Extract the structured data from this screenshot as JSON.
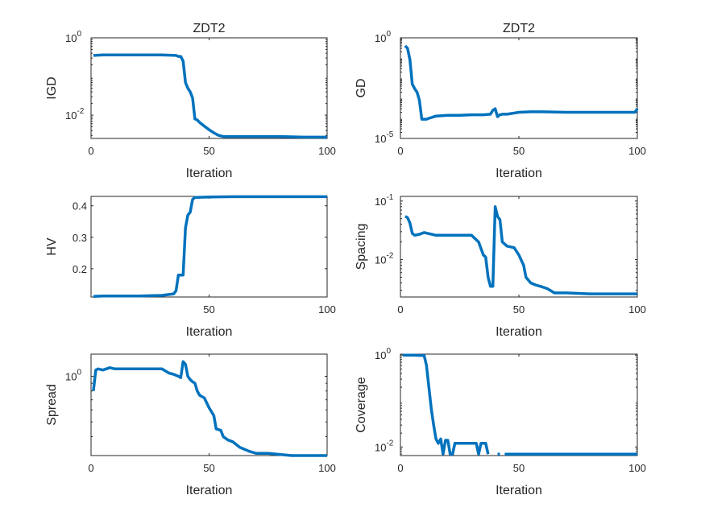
{
  "figure": {
    "series_color": "#0072BD",
    "axis_color": "#262626"
  },
  "chart_data": [
    {
      "id": "igd",
      "type": "line",
      "title": "ZDT2",
      "xlabel": "Iteration",
      "ylabel": "IGD",
      "xlim": [
        0,
        100
      ],
      "ylim": [
        0.0025,
        1
      ],
      "yscale": "log",
      "xticks": [
        0,
        50,
        100
      ],
      "xtick_labels": [
        "0",
        "50",
        "100"
      ],
      "yticks": [
        {
          "value": 1,
          "base": "10",
          "exp": "0"
        },
        {
          "value": 0.01,
          "base": "10",
          "exp": "-2"
        }
      ],
      "grid": false,
      "x": [
        1,
        5,
        10,
        20,
        30,
        36,
        37,
        38,
        39,
        40,
        41,
        42,
        43,
        44,
        45,
        46,
        48,
        50,
        52,
        54,
        56,
        58,
        60,
        65,
        70,
        80,
        90,
        100
      ],
      "y": [
        0.35,
        0.36,
        0.36,
        0.36,
        0.36,
        0.35,
        0.33,
        0.33,
        0.25,
        0.07,
        0.05,
        0.04,
        0.028,
        0.008,
        0.0075,
        0.0065,
        0.0052,
        0.0042,
        0.0035,
        0.003,
        0.0028,
        0.0028,
        0.0028,
        0.0028,
        0.0028,
        0.0028,
        0.0027,
        0.0027
      ]
    },
    {
      "id": "gd",
      "type": "line",
      "title": "ZDT2",
      "xlabel": "Iteration",
      "ylabel": "GD",
      "xlim": [
        0,
        100
      ],
      "ylim": [
        1e-05,
        1
      ],
      "yscale": "log",
      "xticks": [
        0,
        50,
        100
      ],
      "xtick_labels": [
        "0",
        "50",
        "100"
      ],
      "yticks": [
        {
          "value": 1,
          "base": "10",
          "exp": "0"
        },
        {
          "value": 1e-05,
          "base": "10",
          "exp": "-5"
        }
      ],
      "grid": false,
      "x": [
        2,
        3,
        4,
        5,
        6,
        7,
        8,
        9,
        10,
        11,
        12,
        15,
        20,
        25,
        30,
        35,
        38,
        39,
        40,
        41,
        42,
        43,
        45,
        50,
        55,
        60,
        70,
        80,
        90,
        99,
        100
      ],
      "y": [
        0.4,
        0.3,
        0.08,
        0.005,
        0.003,
        0.002,
        0.0008,
        9e-05,
        9e-05,
        9e-05,
        0.0001,
        0.00013,
        0.00014,
        0.00014,
        0.00015,
        0.00015,
        0.00016,
        0.00025,
        0.0003,
        0.00012,
        0.00015,
        0.00016,
        0.00016,
        0.0002,
        0.00021,
        0.00021,
        0.0002,
        0.0002,
        0.0002,
        0.0002,
        0.0003
      ]
    },
    {
      "id": "hv",
      "type": "line",
      "title": "",
      "xlabel": "Iteration",
      "ylabel": "HV",
      "xlim": [
        0,
        100
      ],
      "ylim": [
        0.11,
        0.43
      ],
      "yscale": "linear",
      "xticks": [
        50,
        100
      ],
      "xtick_labels": [
        "50",
        "100"
      ],
      "yticks": [
        {
          "value": 0.2,
          "label": "0.2"
        },
        {
          "value": 0.3,
          "label": "0.3"
        },
        {
          "value": 0.4,
          "label": "0.4"
        }
      ],
      "grid": false,
      "x": [
        1,
        5,
        10,
        20,
        30,
        35,
        36,
        37,
        38,
        39,
        40,
        41,
        42,
        43,
        44,
        45,
        50,
        60,
        70,
        80,
        90,
        100
      ],
      "y": [
        0.112,
        0.113,
        0.113,
        0.113,
        0.115,
        0.12,
        0.13,
        0.18,
        0.18,
        0.18,
        0.33,
        0.37,
        0.38,
        0.42,
        0.427,
        0.427,
        0.428,
        0.429,
        0.429,
        0.429,
        0.429,
        0.429
      ]
    },
    {
      "id": "spacing",
      "type": "line",
      "title": "",
      "xlabel": "Iteration",
      "ylabel": "Spacing",
      "xlim": [
        0,
        100
      ],
      "ylim": [
        0.0023,
        0.12
      ],
      "yscale": "log",
      "xticks": [
        0,
        50,
        100
      ],
      "xtick_labels": [
        "0",
        "50",
        "100"
      ],
      "yticks": [
        {
          "value": 0.1,
          "base": "10",
          "exp": "-1"
        },
        {
          "value": 0.01,
          "base": "10",
          "exp": "-2"
        }
      ],
      "grid": false,
      "x": [
        2,
        3,
        4,
        5,
        6,
        8,
        10,
        15,
        20,
        25,
        30,
        33,
        35,
        36,
        37,
        38,
        39,
        40,
        41,
        42,
        43,
        45,
        48,
        50,
        52,
        53,
        55,
        57,
        60,
        62,
        65,
        70,
        80,
        90,
        100
      ],
      "y": [
        0.055,
        0.052,
        0.042,
        0.028,
        0.026,
        0.027,
        0.029,
        0.026,
        0.026,
        0.026,
        0.026,
        0.02,
        0.012,
        0.011,
        0.005,
        0.0035,
        0.0035,
        0.08,
        0.055,
        0.048,
        0.02,
        0.017,
        0.016,
        0.012,
        0.008,
        0.005,
        0.004,
        0.0037,
        0.0034,
        0.0032,
        0.0027,
        0.0027,
        0.0026,
        0.0026,
        0.0026
      ]
    },
    {
      "id": "spread",
      "type": "line",
      "title": "",
      "xlabel": "Iteration",
      "ylabel": "Spread",
      "xlim": [
        0,
        100
      ],
      "ylim": [
        0.3,
        1.4
      ],
      "yscale": "log",
      "xticks": [
        0,
        50,
        100
      ],
      "xtick_labels": [
        "0",
        "50",
        "100"
      ],
      "yticks": [
        {
          "value": 1,
          "base": "10",
          "exp": "0"
        }
      ],
      "grid": false,
      "x": [
        1,
        2,
        3,
        5,
        8,
        10,
        15,
        20,
        25,
        30,
        33,
        35,
        37,
        38,
        39,
        40,
        41,
        42,
        43,
        44,
        45,
        46,
        48,
        50,
        52,
        53,
        55,
        56,
        58,
        60,
        63,
        65,
        67,
        70,
        75,
        80,
        85,
        90,
        95,
        100
      ],
      "y": [
        0.8,
        1.1,
        1.12,
        1.1,
        1.14,
        1.12,
        1.12,
        1.12,
        1.12,
        1.12,
        1.05,
        1.03,
        1.0,
        0.98,
        1.25,
        1.2,
        1.0,
        0.95,
        0.92,
        0.9,
        0.8,
        0.75,
        0.72,
        0.62,
        0.55,
        0.45,
        0.44,
        0.4,
        0.38,
        0.37,
        0.34,
        0.33,
        0.32,
        0.31,
        0.31,
        0.305,
        0.3,
        0.3,
        0.3,
        0.3
      ]
    },
    {
      "id": "coverage",
      "type": "line",
      "title": "",
      "xlabel": "Iteration",
      "ylabel": "Coverage",
      "xlim": [
        0,
        100
      ],
      "ylim": [
        0.0065,
        1.05
      ],
      "yscale": "log",
      "xticks": [
        0,
        50,
        100
      ],
      "xtick_labels": [
        "0",
        "50",
        "100"
      ],
      "yticks": [
        {
          "value": 1,
          "base": "10",
          "exp": "0"
        },
        {
          "value": 0.01,
          "base": "10",
          "exp": "-2"
        }
      ],
      "grid": false,
      "segments": [
        {
          "x": [
            1,
            5,
            10,
            11,
            12,
            13,
            14,
            15,
            16,
            17,
            18,
            19,
            20,
            21,
            22,
            23,
            24,
            25,
            30,
            32,
            33,
            34,
            35,
            36,
            37
          ],
          "y": [
            1.0,
            1.0,
            0.98,
            0.6,
            0.2,
            0.07,
            0.03,
            0.015,
            0.012,
            0.015,
            0.007,
            0.014,
            0.014,
            0.007,
            0.007,
            0.012,
            0.012,
            0.012,
            0.012,
            0.012,
            0.007,
            0.012,
            0.012,
            0.012,
            0.007
          ]
        },
        {
          "x": [
            41,
            42
          ],
          "y": [
            0.007,
            0.007
          ]
        },
        {
          "x": [
            44,
            50,
            60,
            70,
            80,
            90,
            100
          ],
          "y": [
            0.007,
            0.007,
            0.007,
            0.007,
            0.007,
            0.007,
            0.007
          ]
        }
      ]
    }
  ]
}
